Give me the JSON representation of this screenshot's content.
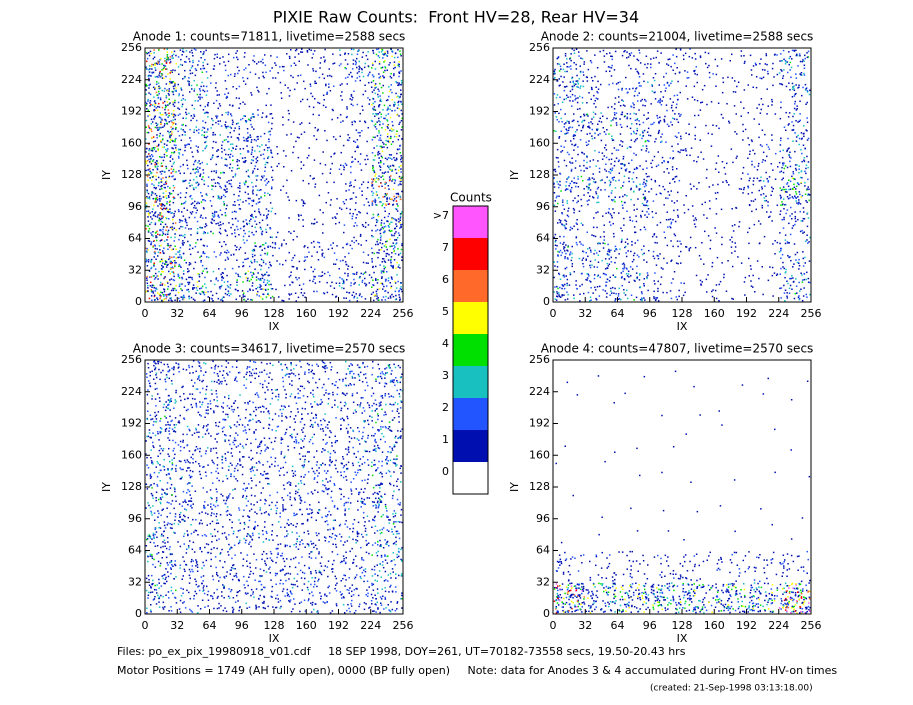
{
  "title": "PIXIE Raw Counts:  Front HV=28, Rear HV=34",
  "chart_data": [
    {
      "type": "heatmap",
      "title": "Anode 1: counts=71811, livetime=2588 secs",
      "xlabel": "IX",
      "ylabel": "IY",
      "xlim": [
        0,
        256
      ],
      "ylim": [
        0,
        256
      ],
      "xticks": [
        0,
        32,
        64,
        96,
        128,
        160,
        192,
        224,
        256
      ],
      "yticks": [
        0,
        32,
        64,
        96,
        128,
        160,
        192,
        224,
        256
      ],
      "values": [
        [
          4,
          2,
          1,
          1,
          1,
          1,
          2,
          3
        ],
        [
          4,
          2,
          1,
          0.5,
          0.5,
          1,
          1,
          3
        ],
        [
          4,
          2,
          2,
          2,
          0.5,
          0.5,
          1,
          3
        ],
        [
          4,
          2,
          2,
          2,
          0.5,
          0.5,
          1,
          3
        ],
        [
          4,
          2,
          2,
          2,
          0.5,
          0.5,
          1,
          4
        ],
        [
          4,
          2,
          2,
          2,
          0.5,
          0.5,
          1,
          3
        ],
        [
          4,
          2,
          1,
          2,
          1,
          1,
          1,
          3
        ],
        [
          4,
          3,
          2,
          3,
          1,
          1,
          2,
          3
        ]
      ]
    },
    {
      "type": "heatmap",
      "title": "Anode 2: counts=21004, livetime=2588 secs",
      "xlabel": "IX",
      "ylabel": "IY",
      "xlim": [
        0,
        256
      ],
      "ylim": [
        0,
        256
      ],
      "xticks": [
        0,
        32,
        64,
        96,
        128,
        160,
        192,
        224,
        256
      ],
      "yticks": [
        0,
        32,
        64,
        96,
        128,
        160,
        192,
        224,
        256
      ],
      "values": [
        [
          2,
          1,
          1,
          1,
          1,
          0.5,
          1,
          2
        ],
        [
          2,
          1,
          1.5,
          1.5,
          0.5,
          0.5,
          0.5,
          1.5
        ],
        [
          2,
          2,
          2,
          1.5,
          0.5,
          0.5,
          0.5,
          1.5
        ],
        [
          1.5,
          1.5,
          1.5,
          1,
          0.5,
          0.5,
          1,
          2
        ],
        [
          2,
          2,
          2,
          1,
          0.5,
          0.5,
          1.5,
          3
        ],
        [
          1.5,
          1,
          1,
          1,
          0.5,
          0.5,
          0.5,
          1.5
        ],
        [
          2,
          2,
          1.5,
          1,
          0.5,
          0.5,
          0.5,
          1.5
        ],
        [
          2,
          2,
          2,
          1,
          0.5,
          0.5,
          0.5,
          2
        ]
      ]
    },
    {
      "type": "heatmap",
      "title": "Anode 3: counts=34617, livetime=2570 secs",
      "xlabel": "IX",
      "ylabel": "IY",
      "xlim": [
        0,
        256
      ],
      "ylim": [
        0,
        256
      ],
      "xticks": [
        0,
        32,
        64,
        96,
        128,
        160,
        192,
        224,
        256
      ],
      "yticks": [
        0,
        32,
        64,
        96,
        128,
        160,
        192,
        224,
        256
      ],
      "values": [
        [
          2,
          1.5,
          1.5,
          1.5,
          1.5,
          1.5,
          1.5,
          2
        ],
        [
          2,
          1.5,
          1.5,
          1.5,
          1.5,
          1.5,
          1.5,
          2
        ],
        [
          2,
          1.5,
          1.5,
          1.5,
          1.5,
          1.5,
          1.5,
          2
        ],
        [
          2,
          1.5,
          1.5,
          1.5,
          1.5,
          1.5,
          1.5,
          2
        ],
        [
          2,
          1.5,
          1.5,
          1.5,
          1.5,
          1.5,
          1.5,
          2
        ],
        [
          2,
          1.5,
          1.5,
          1.5,
          1.5,
          1.5,
          1.5,
          2
        ],
        [
          2,
          1.5,
          1.5,
          1.5,
          1.5,
          1.5,
          1.5,
          2
        ],
        [
          2,
          1.5,
          1.5,
          1.5,
          1.5,
          1.5,
          1.5,
          2
        ]
      ]
    },
    {
      "type": "heatmap",
      "title": "Anode 4: counts=47807, livetime=2570 secs",
      "xlabel": "IX",
      "ylabel": "IY",
      "xlim": [
        0,
        256
      ],
      "ylim": [
        0,
        256
      ],
      "xticks": [
        0,
        32,
        64,
        96,
        128,
        160,
        192,
        224,
        256
      ],
      "yticks": [
        0,
        32,
        64,
        96,
        128,
        160,
        192,
        224,
        256
      ],
      "values": [
        [
          0.02,
          0.02,
          0.02,
          0.02,
          0.02,
          0.02,
          0.02,
          0.02
        ],
        [
          0.02,
          0.02,
          0.02,
          0.02,
          0.02,
          0.02,
          0.02,
          0.02
        ],
        [
          0.02,
          0.02,
          0.02,
          0.02,
          0.02,
          0.02,
          0.02,
          0.02
        ],
        [
          0.02,
          0.02,
          0.02,
          0.02,
          0.02,
          0.02,
          0.02,
          0.02
        ],
        [
          0.02,
          0.02,
          0.02,
          0.02,
          0.02,
          0.02,
          0.02,
          0.02
        ],
        [
          0.02,
          0.02,
          0.02,
          0.02,
          0.02,
          0.02,
          0.02,
          0.02
        ],
        [
          1,
          0.8,
          0.8,
          0.8,
          0.8,
          0.8,
          0.8,
          1
        ],
        [
          5,
          3,
          3,
          3,
          3,
          3,
          3,
          5
        ]
      ]
    }
  ],
  "colorbar": {
    "title": "Counts",
    "labels": [
      "0",
      "1",
      "2",
      "3",
      "4",
      "5",
      "6",
      "7",
      ">7"
    ],
    "colors": [
      "#ffffff",
      "#0010b0",
      "#2255ff",
      "#18c0c0",
      "#00e000",
      "#ffff00",
      "#ff6a2a",
      "#ff0000",
      "#ff55ff"
    ]
  },
  "footer": [
    "Files: po_ex_pix_19980918_v01.cdf     18 SEP 1998, DOY=261, UT=70182-73558 secs, 19.50-20.43 hrs",
    "Motor Positions = 1749 (AH fully open), 0000 (BP fully open)     Note: data for Anodes 3 & 4 accumulated during Front HV-on times",
    "(created: 21-Sep-1998 03:13:18.00)"
  ]
}
